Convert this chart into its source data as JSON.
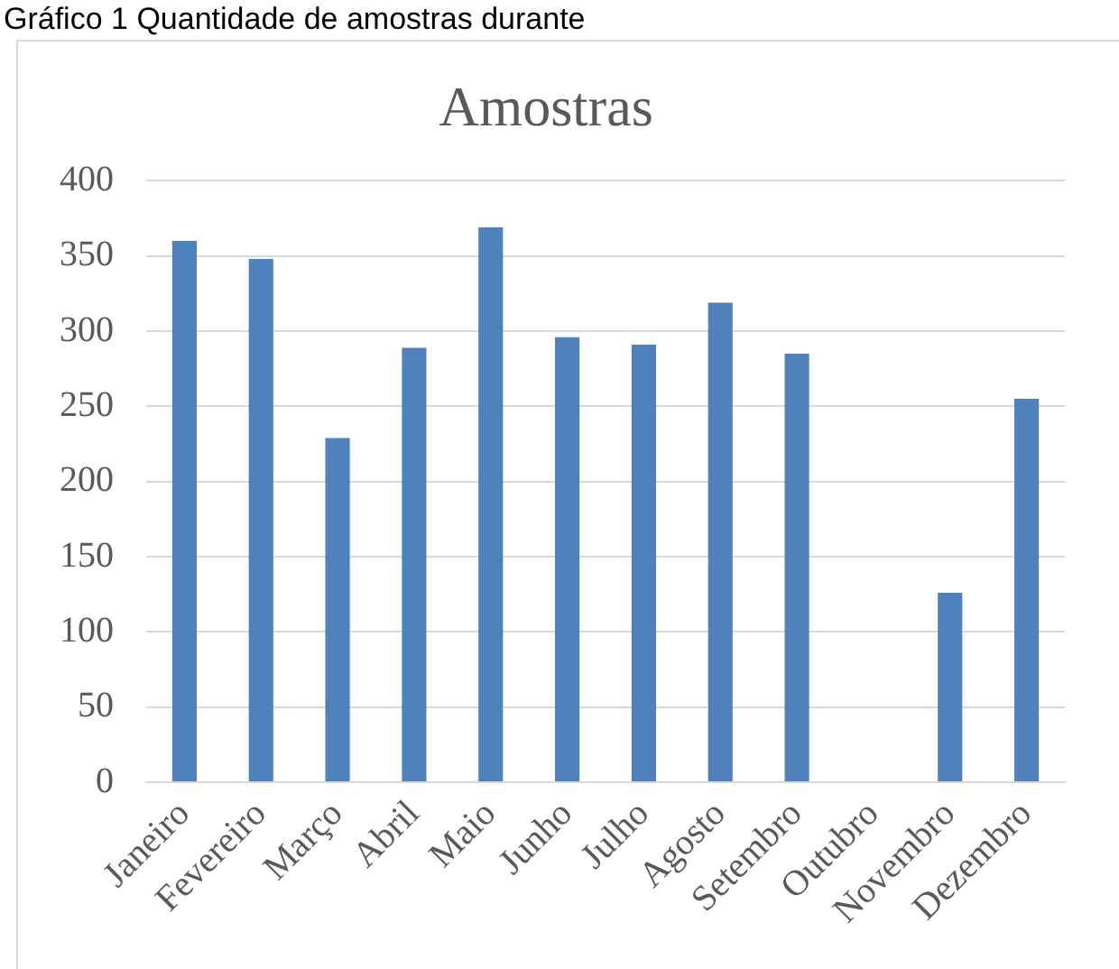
{
  "chart_data": {
    "type": "bar",
    "title": "Amostras",
    "annotations": [
      "Gráfico 1 Quantidade de amostras durante"
    ],
    "categories": [
      "Janeiro",
      "Fevereiro",
      "Março",
      "Abril",
      "Maio",
      "Junho",
      "Julho",
      "Agosto",
      "Setembro",
      "Outubro",
      "Novembro",
      "Dezembro"
    ],
    "values": [
      360,
      348,
      229,
      289,
      369,
      296,
      291,
      319,
      285,
      null,
      126,
      255
    ],
    "color": "#4f81bd",
    "ylim": [
      0,
      400
    ],
    "yticks": [
      0,
      50,
      100,
      150,
      200,
      250,
      300,
      350,
      400
    ],
    "grid": "y",
    "legend": false
  }
}
